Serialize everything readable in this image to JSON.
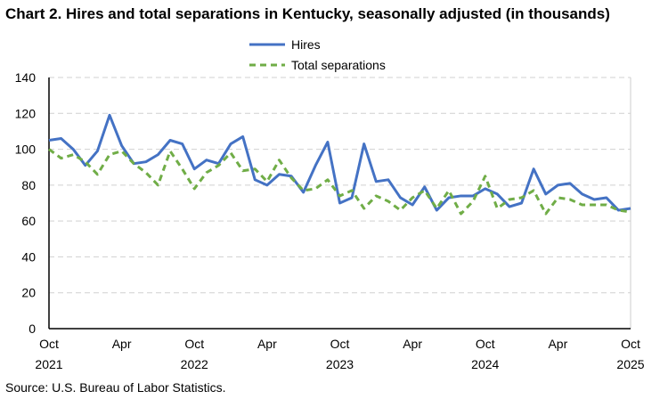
{
  "chart_data": {
    "type": "line",
    "title": "Chart 2. Hires and total separations in Kentucky, seasonally adjusted (in thousands)",
    "source": "Source: U.S. Bureau of Labor Statistics.",
    "ylim": [
      0,
      140
    ],
    "yticks": [
      0,
      20,
      40,
      60,
      80,
      100,
      120,
      140
    ],
    "grid": true,
    "legend_placement": "top-center",
    "xticks": [
      {
        "index": 0,
        "month": "Oct",
        "year": "2021"
      },
      {
        "index": 6,
        "month": "Apr",
        "year": ""
      },
      {
        "index": 12,
        "month": "Oct",
        "year": "2022"
      },
      {
        "index": 18,
        "month": "Apr",
        "year": ""
      },
      {
        "index": 24,
        "month": "Oct",
        "year": "2023"
      },
      {
        "index": 30,
        "month": "Apr",
        "year": ""
      },
      {
        "index": 36,
        "month": "Oct",
        "year": "2024"
      },
      {
        "index": 42,
        "month": "Apr",
        "year": ""
      },
      {
        "index": 48,
        "month": "Oct",
        "year": "2025"
      }
    ],
    "x_range": [
      "Oct 2021",
      "Oct 2025"
    ],
    "series": [
      {
        "name": "Hires",
        "color": "#4472C4",
        "dash": "solid",
        "values": [
          105,
          106,
          100,
          91,
          99,
          119,
          102,
          92,
          93,
          97,
          105,
          103,
          89,
          94,
          92,
          103,
          107,
          83,
          80,
          86,
          85,
          76,
          91,
          104,
          70,
          73,
          103,
          82,
          83,
          73,
          69,
          79,
          66,
          73,
          74,
          74,
          78,
          75,
          68,
          70,
          89,
          75,
          80,
          81,
          75,
          72,
          73,
          66,
          67
        ]
      },
      {
        "name": "Total separations",
        "color": "#70AD47",
        "dash": "dashed",
        "values": [
          100,
          95,
          97,
          93,
          86,
          97,
          99,
          92,
          87,
          80,
          99,
          89,
          78,
          87,
          91,
          98,
          88,
          89,
          82,
          94,
          84,
          77,
          78,
          83,
          74,
          77,
          67,
          74,
          71,
          66,
          73,
          77,
          67,
          77,
          64,
          71,
          85,
          67,
          72,
          73,
          77,
          64,
          73,
          72,
          69,
          69,
          69,
          66,
          65
        ]
      }
    ]
  }
}
